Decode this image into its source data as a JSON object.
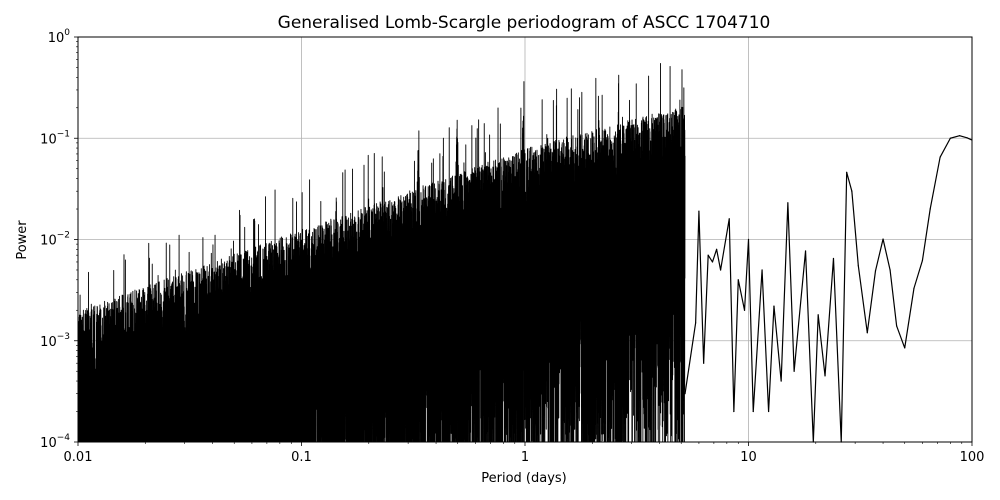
{
  "chart_data": {
    "type": "line",
    "title": "Generalised Lomb-Scargle periodogram of ASCC 1704710",
    "xlabel": "Period (days)",
    "ylabel": "Power",
    "xscale": "log",
    "yscale": "log",
    "xlim": [
      0.01,
      100
    ],
    "ylim": [
      0.0001,
      1
    ],
    "grid": true,
    "line_color": "#000000",
    "x_ticks": [
      "0.01",
      "0.1",
      "1",
      "10",
      "100"
    ],
    "y_ticks": [
      {
        "base": "10",
        "exp": "−4"
      },
      {
        "base": "10",
        "exp": "−3"
      },
      {
        "base": "10",
        "exp": "−2"
      },
      {
        "base": "10",
        "exp": "−1"
      },
      {
        "base": "10",
        "exp": "0"
      }
    ],
    "series": [
      {
        "x": [
          5.2,
          5.8,
          6.0,
          6.3,
          6.6,
          6.9,
          7.2,
          7.5,
          8.2,
          8.6,
          9.0,
          9.6,
          10.0,
          10.5,
          11.5,
          12.3,
          13.0,
          14.0,
          15.0,
          16.0,
          18.0,
          19.5,
          20.5,
          22.0,
          24.0,
          26.0,
          27.5,
          29.0,
          31.0,
          34.0,
          37.0,
          40.0,
          43.0,
          46.0,
          50.0,
          55.0,
          60.0,
          65.0,
          72.0,
          80.0,
          88.0,
          95.0,
          100.0
        ],
        "y": [
          0.0003,
          0.0015,
          0.019,
          0.0006,
          0.007,
          0.006,
          0.008,
          0.005,
          0.016,
          0.0002,
          0.004,
          0.002,
          0.01,
          0.0002,
          0.005,
          0.0002,
          0.0022,
          0.0004,
          0.023,
          0.0005,
          0.0077,
          0.0001,
          0.0018,
          0.00045,
          0.0065,
          0.0001,
          0.046,
          0.03,
          0.0055,
          0.0012,
          0.0049,
          0.0101,
          0.005,
          0.0014,
          0.00085,
          0.0033,
          0.0062,
          0.02,
          0.065,
          0.1,
          0.106,
          0.101,
          0.096
        ]
      }
    ],
    "peaks": [
      {
        "x": 0.333,
        "y": 0.055
      },
      {
        "x": 0.497,
        "y": 0.1
      },
      {
        "x": 0.98,
        "y": 0.112
      },
      {
        "x": 0.143,
        "y": 0.016
      },
      {
        "x": 0.2,
        "y": 0.017
      },
      {
        "x": 0.25,
        "y": 0.016
      }
    ]
  }
}
